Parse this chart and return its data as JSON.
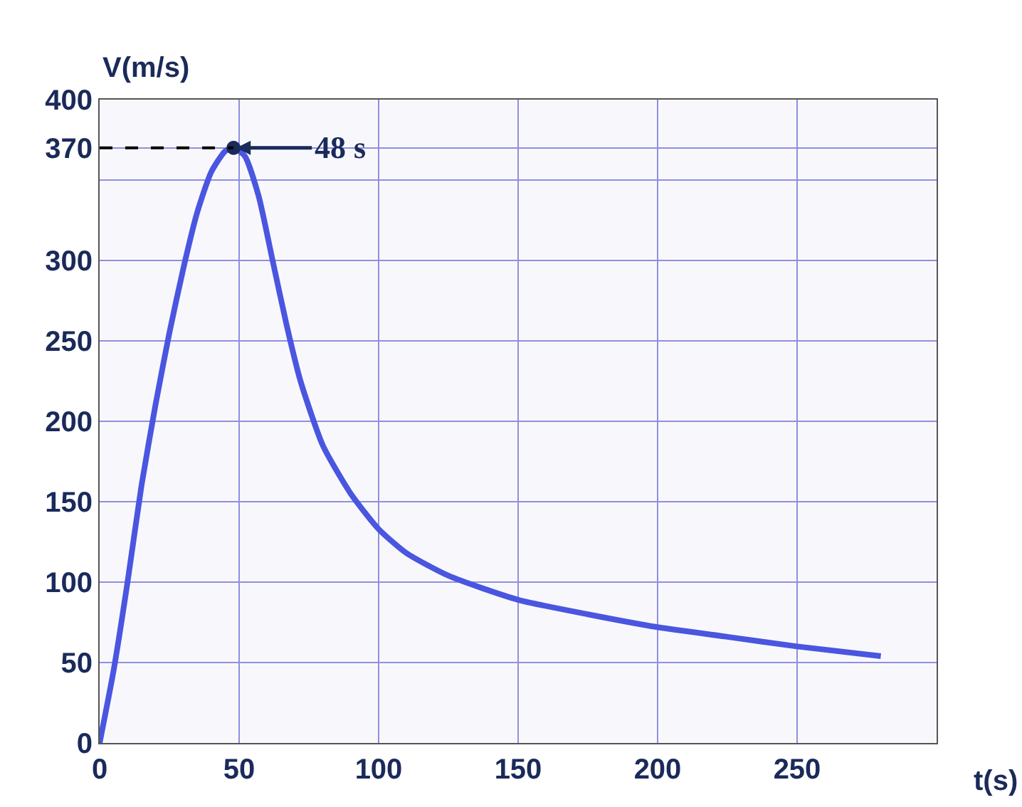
{
  "chart_data": {
    "type": "line",
    "xlabel": "t(s)",
    "ylabel": "V(m/s)",
    "x": [
      0,
      5,
      10,
      15,
      20,
      25,
      30,
      35,
      40,
      45,
      48,
      52,
      57,
      62,
      67,
      72,
      80,
      90,
      100,
      110,
      125,
      150,
      175,
      200,
      225,
      250,
      280
    ],
    "series": [
      {
        "color": "#4a56e0",
        "values": [
          0,
          45,
          100,
          160,
          210,
          255,
          295,
          330,
          355,
          368,
          370,
          365,
          340,
          300,
          260,
          225,
          185,
          155,
          133,
          118,
          104,
          89,
          80,
          72,
          66,
          60,
          54
        ]
      }
    ],
    "xlim": [
      0,
      300
    ],
    "xticks": [
      0,
      50,
      100,
      150,
      200,
      250
    ],
    "ylim": [
      0,
      400
    ],
    "yticks": [
      0,
      50,
      100,
      150,
      200,
      250,
      300,
      {
        "value": 350,
        "label": null
      },
      370,
      400
    ],
    "grid": true,
    "line_style": "solid",
    "marker": "none",
    "ref_lines": [
      {
        "axis": "y",
        "value": 370,
        "label": null,
        "color": "#000000",
        "line_style": "dashed"
      }
    ],
    "annotations": [
      {
        "text": "48 s",
        "x": 48,
        "y": 370
      }
    ]
  }
}
